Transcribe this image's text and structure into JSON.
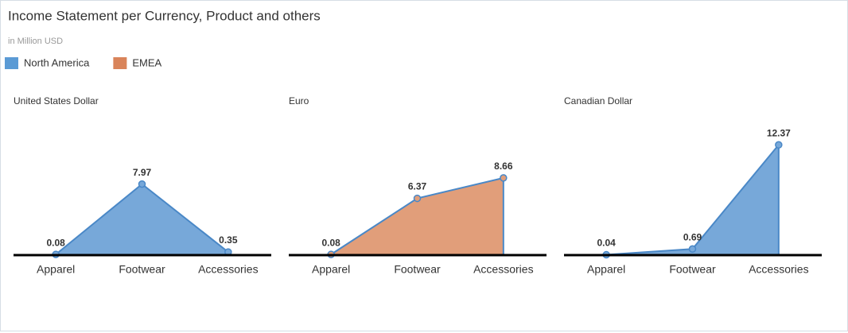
{
  "header": {
    "title": "Income Statement per Currency, Product and others",
    "subtitle": "in Million USD"
  },
  "legend": [
    {
      "name": "North America",
      "color": "#5b9bd5"
    },
    {
      "name": "EMEA",
      "color": "#d9845a"
    }
  ],
  "chart_data": [
    {
      "type": "area",
      "title": "United States Dollar",
      "categories": [
        "Apparel",
        "Footwear",
        "Accessories"
      ],
      "series": [
        {
          "name": "North America",
          "color": "#77a8d9",
          "values": [
            0.08,
            7.97,
            0.35
          ]
        }
      ],
      "ylim": [
        0,
        14
      ]
    },
    {
      "type": "area",
      "title": "Euro",
      "categories": [
        "Apparel",
        "Footwear",
        "Accessories"
      ],
      "series": [
        {
          "name": "EMEA",
          "color": "#e19e7a",
          "values": [
            0.08,
            6.37,
            8.66
          ]
        }
      ],
      "ylim": [
        0,
        14
      ]
    },
    {
      "type": "area",
      "title": "Canadian Dollar",
      "categories": [
        "Apparel",
        "Footwear",
        "Accessories"
      ],
      "series": [
        {
          "name": "North America",
          "color": "#77a8d9",
          "values": [
            0.04,
            0.69,
            12.37
          ]
        }
      ],
      "ylim": [
        0,
        14
      ]
    }
  ]
}
